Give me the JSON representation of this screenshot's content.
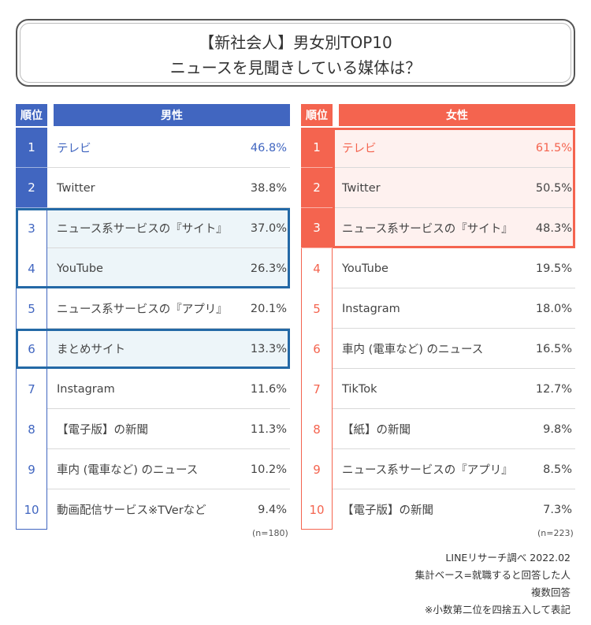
{
  "title": {
    "line1": "【新社会人】男女別TOP10",
    "line2": "ニュースを見聞きしている媒体は？"
  },
  "colors": {
    "male_accent": "#4166c0",
    "male_highlight_bg": "#edf5f9",
    "male_highlight_border": "#2469a6",
    "female_accent": "#f4644f",
    "female_highlight_bg": "#fef1ef"
  },
  "chart_data": [
    {
      "type": "table",
      "title": "男性",
      "rank_header": "順位",
      "n": "(n=180)",
      "ranks": [
        "1",
        "2",
        "3",
        "4",
        "5",
        "6",
        "7",
        "8",
        "9",
        "10"
      ],
      "categories": [
        "テレビ",
        "Twitter",
        "ニュース系サービスの『サイト』",
        "YouTube",
        "ニュース系サービスの『アプリ』",
        "まとめサイト",
        "Instagram",
        "【電子版】の新聞",
        "車内 (電車など) のニュース",
        "動画配信サービス※TVerなど"
      ],
      "values": [
        46.8,
        38.8,
        37.0,
        26.3,
        20.1,
        13.3,
        11.6,
        11.3,
        10.2,
        9.4
      ],
      "labels": [
        "46.8%",
        "38.8%",
        "37.0%",
        "26.3%",
        "20.1%",
        "13.3%",
        "11.6%",
        "11.3%",
        "10.2%",
        "9.4%"
      ]
    },
    {
      "type": "table",
      "title": "女性",
      "rank_header": "順位",
      "n": "(n=223)",
      "ranks": [
        "1",
        "2",
        "3",
        "4",
        "5",
        "6",
        "7",
        "8",
        "9",
        "10"
      ],
      "categories": [
        "テレビ",
        "Twitter",
        "ニュース系サービスの『サイト』",
        "YouTube",
        "Instagram",
        "車内 (電車など) のニュース",
        "TikTok",
        "【紙】の新聞",
        "ニュース系サービスの『アプリ』",
        "【電子版】の新聞"
      ],
      "values": [
        61.5,
        50.5,
        48.3,
        19.5,
        18.0,
        16.5,
        12.7,
        9.8,
        8.5,
        7.3
      ],
      "labels": [
        "61.5%",
        "50.5%",
        "48.3%",
        "19.5%",
        "18.0%",
        "16.5%",
        "12.7%",
        "9.8%",
        "8.5%",
        "7.3%"
      ]
    }
  ],
  "footnotes": [
    "LINEリサーチ調べ 2022.02",
    "集計ベース=就職すると回答した人",
    "複数回答",
    "※小数第二位を四捨五入して表記"
  ]
}
